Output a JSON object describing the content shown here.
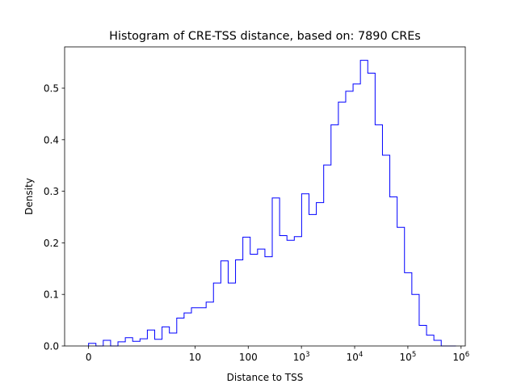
{
  "chart_data": {
    "type": "histogram",
    "title": "Histogram of CRE-TSS distance, based on: 7890 CREs",
    "xlabel": "Distance to TSS",
    "ylabel": "Density",
    "x_scale": "symlog",
    "xlim": [
      -0.45,
      1200000
    ],
    "ylim": [
      0,
      0.58
    ],
    "grid": false,
    "line_color": "#0000ff",
    "x_ticks": [
      {
        "value": 0,
        "label": "0",
        "main": "0",
        "exp": ""
      },
      {
        "value": 10,
        "label": "10",
        "main": "10",
        "exp": ""
      },
      {
        "value": 100,
        "label": "100",
        "main": "100",
        "exp": ""
      },
      {
        "value": 1000,
        "label": "10^3",
        "main": "10",
        "exp": "3"
      },
      {
        "value": 10000,
        "label": "10^4",
        "main": "10",
        "exp": "4"
      },
      {
        "value": 100000,
        "label": "10^5",
        "main": "10",
        "exp": "5"
      },
      {
        "value": 1000000,
        "label": "10^6",
        "main": "10",
        "exp": "6"
      }
    ],
    "y_ticks": [
      {
        "value": 0.0,
        "label": "0.0"
      },
      {
        "value": 0.1,
        "label": "0.1"
      },
      {
        "value": 0.2,
        "label": "0.2"
      },
      {
        "value": 0.3,
        "label": "0.3"
      },
      {
        "value": 0.4,
        "label": "0.4"
      },
      {
        "value": 0.5,
        "label": "0.5"
      }
    ],
    "bin_range": [
      0,
      800000
    ],
    "densities": [
      0.005,
      0.0,
      0.011,
      0.0,
      0.008,
      0.016,
      0.009,
      0.014,
      0.031,
      0.013,
      0.037,
      0.025,
      0.054,
      0.064,
      0.074,
      0.074,
      0.085,
      0.122,
      0.165,
      0.122,
      0.167,
      0.211,
      0.178,
      0.188,
      0.173,
      0.287,
      0.214,
      0.205,
      0.212,
      0.295,
      0.255,
      0.278,
      0.351,
      0.429,
      0.473,
      0.494,
      0.508,
      0.554,
      0.529,
      0.429,
      0.37,
      0.289,
      0.23,
      0.142,
      0.1,
      0.04,
      0.021,
      0.011,
      0.0,
      0.0
    ]
  }
}
